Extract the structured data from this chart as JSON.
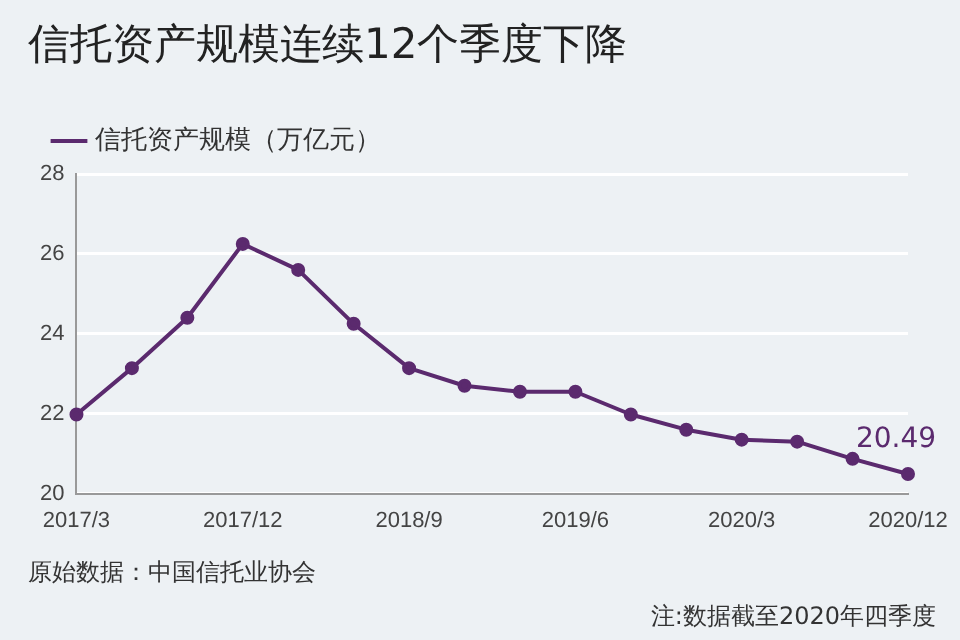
{
  "chart_data": {
    "type": "line",
    "title": "信托资产规模连续12个季度下降",
    "categories": [
      "2017/3",
      null,
      null,
      "2017/12",
      null,
      null,
      "2018/9",
      null,
      null,
      "2019/6",
      null,
      null,
      "2020/3",
      null,
      null,
      "2020/12"
    ],
    "series": [
      {
        "name": "信托资产规模（万亿元）",
        "color": "#5b2a6e",
        "values": [
          21.98,
          23.14,
          24.4,
          26.25,
          25.6,
          24.25,
          23.14,
          22.7,
          22.55,
          22.55,
          21.98,
          21.6,
          21.35,
          21.3,
          20.87,
          20.49
        ],
        "value_labels": [
          null,
          null,
          null,
          null,
          null,
          null,
          null,
          null,
          null,
          null,
          null,
          null,
          null,
          null,
          null,
          "20.49"
        ]
      }
    ],
    "ylim": [
      20,
      28
    ],
    "yticks": [
      20,
      22,
      24,
      26,
      28
    ],
    "grid": "y",
    "legend": "top left",
    "marker": "circle",
    "line_style": "solid",
    "annotations": [
      "原始数据：中国信托业协会",
      "注:数据截至2020年四季度"
    ]
  }
}
